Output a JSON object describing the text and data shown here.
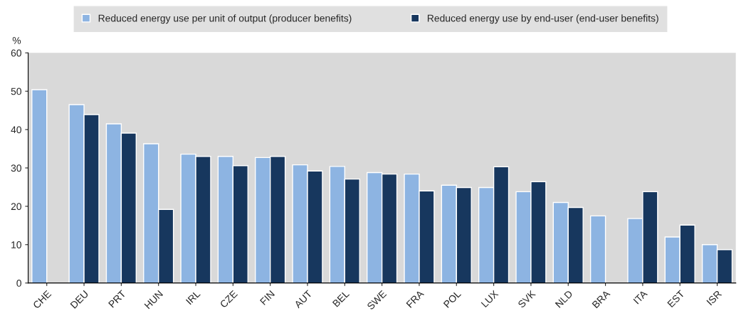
{
  "chart_data": {
    "type": "bar",
    "ylabel": "%",
    "categories": [
      "CHE",
      "DEU",
      "PRT",
      "HUN",
      "IRL",
      "CZE",
      "FIN",
      "AUT",
      "BEL",
      "SWE",
      "FRA",
      "POL",
      "LUX",
      "SVK",
      "NLD",
      "BRA",
      "ITA",
      "EST",
      "ISR"
    ],
    "series": [
      {
        "name": "Reduced energy use per unit of output (producer benefits)",
        "color": "#8db4e2",
        "values": [
          50.4,
          46.5,
          41.5,
          36.3,
          33.6,
          33.0,
          32.7,
          30.8,
          30.4,
          28.8,
          28.4,
          25.5,
          24.9,
          23.8,
          21.0,
          17.5,
          16.8,
          12.0,
          10.0
        ]
      },
      {
        "name": "Reduced energy use by end-user (end-user benefits)",
        "color": "#17375e",
        "values": [
          null,
          43.9,
          39.1,
          19.2,
          33.0,
          30.6,
          33.0,
          29.2,
          27.1,
          28.4,
          24.0,
          24.9,
          30.3,
          26.4,
          19.7,
          null,
          23.8,
          15.1,
          8.7
        ]
      }
    ],
    "ylim": [
      0,
      60
    ],
    "yticks": [
      0,
      10,
      20,
      30,
      40,
      50,
      60
    ],
    "grid": false,
    "legend": "top"
  }
}
